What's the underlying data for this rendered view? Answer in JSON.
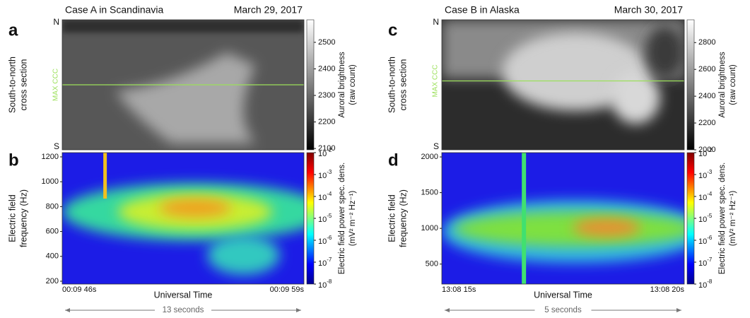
{
  "chart_data": [
    {
      "type": "keogram",
      "panel": "a",
      "title": "Case A in Scandinavia",
      "date": "March 29, 2017",
      "ylabel": [
        "South-to-north",
        "cross section"
      ],
      "y_labels": [
        "N",
        "S"
      ],
      "annotation": "MAX CCC",
      "colorbar": {
        "label": [
          "Auroral brightness",
          "(raw count)"
        ],
        "lim": [
          2095,
          2585
        ],
        "ticks": [
          2100,
          2200,
          2300,
          2400,
          2500
        ],
        "colormap": "gray"
      }
    },
    {
      "type": "spectrogram",
      "panel": "b",
      "ylabel": [
        "Electric field",
        "frequency (Hz)"
      ],
      "ylim": [
        177,
        1234
      ],
      "yticks": [
        200,
        400,
        600,
        800,
        1000,
        1200
      ],
      "xlabel": "Universal Time",
      "x_labels": [
        "00:09 46s",
        "00:09 59s"
      ],
      "duration": "13 seconds",
      "colorbar": {
        "label": [
          "Electric field power spec. dens.",
          "(mV² m⁻² Hz⁻¹)"
        ],
        "lim": [
          1e-08,
          0.01
        ],
        "log": true,
        "colormap": "jet",
        "ticks": [
          {
            "value": 0.01,
            "label": "10",
            "exponent": "-2"
          },
          {
            "value": 0.001,
            "label": "10",
            "exponent": "-3"
          },
          {
            "value": 0.0001,
            "label": "10",
            "exponent": "-4"
          },
          {
            "value": 1e-05,
            "label": "10",
            "exponent": "-5"
          },
          {
            "value": 1e-06,
            "label": "10",
            "exponent": "-6"
          },
          {
            "value": 1e-07,
            "label": "10",
            "exponent": "-7"
          },
          {
            "value": 1e-08,
            "label": "10",
            "exponent": "-8"
          }
        ]
      }
    },
    {
      "type": "keogram",
      "panel": "c",
      "title": "Case B in Alaska",
      "date": "March 30, 2017",
      "ylabel": [
        "South-to-north",
        "cross section"
      ],
      "y_labels": [
        "N",
        "S"
      ],
      "annotation": "MAX CCC",
      "colorbar": {
        "label": [
          "Auroral brightness",
          "(raw count)"
        ],
        "lim": [
          2000,
          2970
        ],
        "ticks": [
          2000,
          2200,
          2400,
          2600,
          2800
        ],
        "colormap": "gray"
      }
    },
    {
      "type": "spectrogram",
      "panel": "d",
      "ylabel": [
        "Electric field",
        "frequency (Hz)"
      ],
      "ylim": [
        220,
        2060
      ],
      "yticks": [
        500,
        1000,
        1500,
        2000
      ],
      "xlabel": "Universal Time",
      "x_labels": [
        "13:08 15s",
        "13:08 20s"
      ],
      "duration": "5 seconds",
      "colorbar": {
        "label": [
          "Electric field power spec. dens.",
          "(mV² m⁻² Hz⁻¹)"
        ],
        "lim": [
          1e-08,
          0.01
        ],
        "log": true,
        "colormap": "jet",
        "ticks": [
          {
            "value": 0.01,
            "label": "10",
            "exponent": "-2"
          },
          {
            "value": 0.001,
            "label": "10",
            "exponent": "-3"
          },
          {
            "value": 0.0001,
            "label": "10",
            "exponent": "-4"
          },
          {
            "value": 1e-05,
            "label": "10",
            "exponent": "-5"
          },
          {
            "value": 1e-06,
            "label": "10",
            "exponent": "-6"
          },
          {
            "value": 1e-07,
            "label": "10",
            "exponent": "-7"
          },
          {
            "value": 1e-08,
            "label": "10",
            "exponent": "-8"
          }
        ]
      }
    }
  ]
}
